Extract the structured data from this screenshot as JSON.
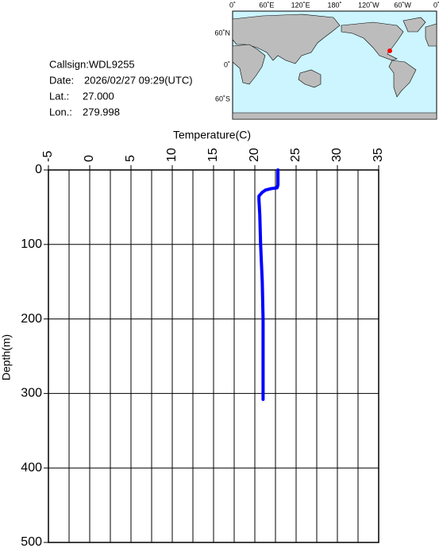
{
  "info": {
    "callsign": "Callsign:WDL9255",
    "date_label": "Date:",
    "date": "2026/02/27 09:29(UTC)",
    "lat_label": "Lat.:",
    "lat": "27.000",
    "lon_label": "Lon.:",
    "lon": "279.998"
  },
  "map": {
    "lon_labels": [
      "0˚",
      "60˚E",
      "120˚E",
      "180˚",
      "120˚W",
      "60˚W",
      "0˚"
    ],
    "lat_labels": [
      "60˚N",
      "0˚",
      "60˚S"
    ]
  },
  "chart_data": {
    "type": "line",
    "x_label": "Temperature(C)",
    "y_label": "Depth(m)",
    "xlim": [
      -5,
      35
    ],
    "xticks": [
      -5,
      0,
      5,
      10,
      15,
      20,
      25,
      30,
      35
    ],
    "xgrid": [
      -2.5,
      2.5,
      7.5,
      12.5,
      17.5,
      22.5,
      27.5,
      32.5
    ],
    "ylim": [
      0,
      500
    ],
    "yticks": [
      0,
      100,
      200,
      300,
      400,
      500
    ],
    "y_inverted": true,
    "grid": true,
    "series": [
      {
        "color": "#0000ff",
        "x": [
          22.8,
          22.8,
          22.8,
          22.7,
          22.0,
          21.3,
          20.9,
          20.5,
          20.5,
          20.6,
          20.7,
          20.9,
          21.0,
          21.0,
          21.0,
          21.0
        ],
        "values": [
          0,
          10,
          20,
          24,
          25,
          27,
          30,
          35,
          40,
          60,
          100,
          150,
          200,
          250,
          300,
          308
        ]
      }
    ]
  }
}
